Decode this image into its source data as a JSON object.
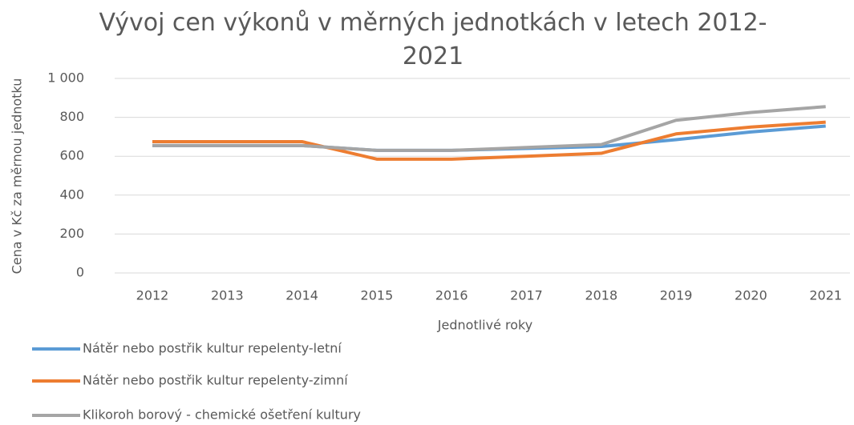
{
  "chart_data": {
    "type": "line",
    "title": "Vývoj cen výkonů v měrných jednotkách v letech 2012-2021",
    "x_label": "Jednotlivé roky",
    "y_label": "Cena v Kč za měrnou jednotku",
    "categories": [
      "2012",
      "2013",
      "2014",
      "2015",
      "2016",
      "2017",
      "2018",
      "2019",
      "2020",
      "2021"
    ],
    "series": [
      {
        "name": "Nátěr nebo postřik kultur repelenty-letní",
        "color": "#5b9bd5",
        "values": [
          655,
          655,
          655,
          630,
          630,
          640,
          650,
          685,
          725,
          755
        ]
      },
      {
        "name": "Nátěr nebo postřik kultur repelenty-zimní",
        "color": "#ed7d31",
        "values": [
          675,
          675,
          675,
          585,
          585,
          600,
          615,
          715,
          750,
          775
        ]
      },
      {
        "name": "Klikoroh borový - chemické ošetření kultury",
        "color": "#a5a5a5",
        "values": [
          655,
          655,
          655,
          630,
          630,
          645,
          660,
          785,
          825,
          855
        ]
      }
    ],
    "ylim": [
      0,
      1000
    ],
    "yticks": [
      0,
      200,
      400,
      600,
      800,
      {
        "value": 1000,
        "label": "1 000"
      }
    ],
    "grid": true,
    "legend": "bottom"
  }
}
